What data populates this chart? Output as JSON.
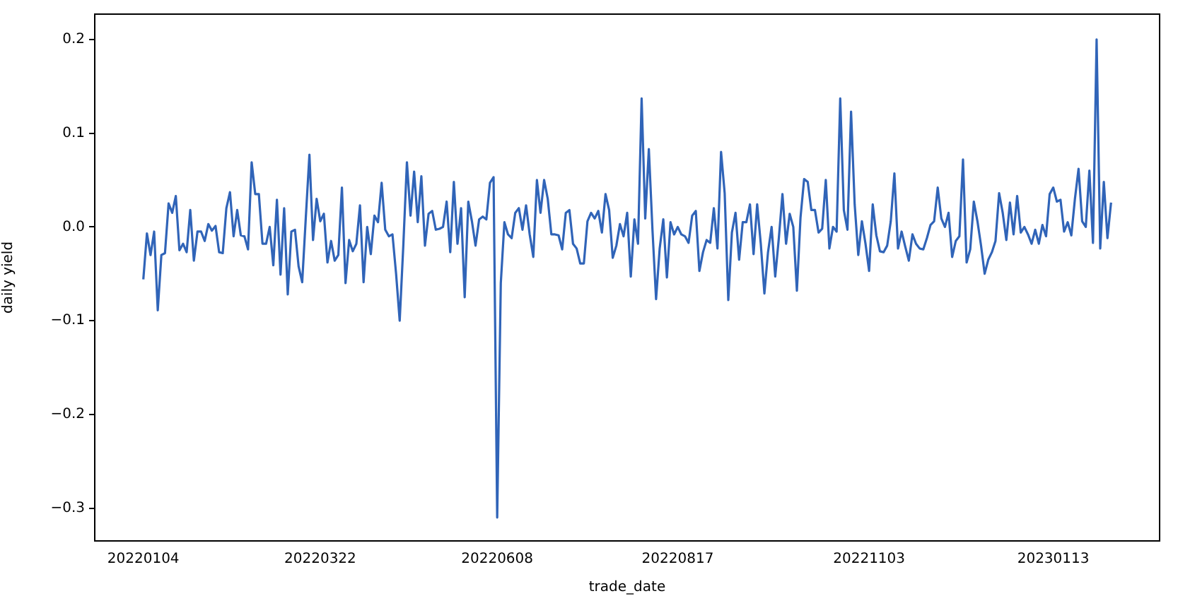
{
  "chart_data": {
    "type": "line",
    "xlabel": "trade_date",
    "ylabel": "daily yield",
    "categories": [
      "20220104",
      null,
      null,
      null,
      null,
      null,
      null,
      null,
      null,
      null,
      null,
      null,
      null,
      null,
      null,
      null,
      null,
      null,
      null,
      null,
      null,
      null,
      null,
      null,
      null,
      null,
      null,
      null,
      null,
      null,
      null,
      null,
      null,
      null,
      null,
      null,
      null,
      null,
      null,
      null,
      null,
      null,
      null,
      null,
      null,
      null,
      null,
      null,
      null,
      "20220322",
      null,
      null,
      null,
      null,
      null,
      null,
      null,
      null,
      null,
      null,
      null,
      null,
      null,
      null,
      null,
      null,
      null,
      null,
      null,
      null,
      null,
      null,
      null,
      null,
      null,
      null,
      null,
      null,
      null,
      null,
      null,
      null,
      null,
      null,
      null,
      null,
      null,
      null,
      null,
      null,
      null,
      null,
      null,
      null,
      null,
      null,
      null,
      null,
      "20220608",
      null,
      null,
      null,
      null,
      null,
      null,
      null,
      null,
      null,
      null,
      null,
      null,
      null,
      null,
      null,
      null,
      null,
      null,
      null,
      null,
      null,
      null,
      null,
      null,
      null,
      null,
      null,
      null,
      null,
      null,
      null,
      null,
      null,
      null,
      null,
      null,
      null,
      null,
      null,
      null,
      null,
      null,
      null,
      null,
      null,
      null,
      null,
      null,
      null,
      "20220817",
      null,
      null,
      null,
      null,
      null,
      null,
      null,
      null,
      null,
      null,
      null,
      null,
      null,
      null,
      null,
      null,
      null,
      null,
      null,
      null,
      null,
      null,
      null,
      null,
      null,
      null,
      null,
      null,
      null,
      null,
      null,
      null,
      null,
      null,
      null,
      null,
      null,
      null,
      null,
      null,
      null,
      null,
      null,
      null,
      null,
      null,
      null,
      null,
      null,
      null,
      null,
      null,
      "20221103",
      null,
      null,
      null,
      null,
      null,
      null,
      null,
      null,
      null,
      null,
      null,
      null,
      null,
      null,
      null,
      null,
      null,
      null,
      null,
      null,
      null,
      null,
      null,
      null,
      null,
      null,
      null,
      null,
      null,
      null,
      null,
      null,
      null,
      null,
      null,
      null,
      null,
      null,
      null,
      null,
      null,
      null,
      null,
      null,
      null,
      null,
      null,
      null,
      null,
      null,
      "20230113",
      null,
      null,
      null,
      null,
      null,
      null,
      null,
      null,
      null,
      null,
      null,
      null,
      null,
      null,
      null,
      null
    ],
    "series": [
      {
        "color": "#3064b8",
        "values": [
          -0.056,
          -0.007,
          -0.03,
          -0.005,
          -0.089,
          -0.03,
          -0.028,
          0.025,
          0.015,
          0.033,
          -0.025,
          -0.018,
          -0.027,
          0.018,
          -0.036,
          -0.005,
          -0.005,
          -0.015,
          0.003,
          -0.004,
          0.001,
          -0.027,
          -0.028,
          0.02,
          0.037,
          -0.01,
          0.018,
          -0.009,
          -0.01,
          -0.024,
          0.069,
          0.035,
          0.035,
          -0.018,
          -0.018,
          0.0,
          -0.041,
          0.029,
          -0.051,
          0.02,
          -0.072,
          -0.005,
          -0.003,
          -0.042,
          -0.059,
          0.01,
          0.077,
          -0.014,
          0.03,
          0.006,
          0.014,
          -0.038,
          -0.015,
          -0.036,
          -0.03,
          0.042,
          -0.06,
          -0.014,
          -0.026,
          -0.018,
          0.023,
          -0.059,
          0.0,
          -0.029,
          0.012,
          0.005,
          0.047,
          -0.003,
          -0.01,
          -0.008,
          -0.05,
          -0.1,
          -0.02,
          0.069,
          0.012,
          0.059,
          0.005,
          0.054,
          -0.02,
          0.014,
          0.017,
          -0.003,
          -0.002,
          0.0,
          0.027,
          -0.027,
          0.048,
          -0.018,
          0.02,
          -0.075,
          0.027,
          0.006,
          -0.02,
          0.008,
          0.011,
          0.008,
          0.047,
          0.053,
          -0.31,
          -0.06,
          0.005,
          -0.008,
          -0.012,
          0.015,
          0.02,
          -0.003,
          0.023,
          -0.008,
          -0.032,
          0.05,
          0.015,
          0.05,
          0.03,
          -0.008,
          -0.008,
          -0.009,
          -0.024,
          0.015,
          0.018,
          -0.018,
          -0.023,
          -0.039,
          -0.039,
          0.006,
          0.015,
          0.009,
          0.017,
          -0.006,
          0.035,
          0.018,
          -0.033,
          -0.02,
          0.003,
          -0.01,
          0.015,
          -0.053,
          0.008,
          -0.018,
          0.137,
          0.009,
          0.083,
          -0.003,
          -0.077,
          -0.023,
          0.008,
          -0.054,
          0.005,
          -0.008,
          0.0,
          -0.008,
          -0.01,
          -0.017,
          0.012,
          0.017,
          -0.047,
          -0.027,
          -0.014,
          -0.017,
          0.02,
          -0.023,
          0.08,
          0.036,
          -0.078,
          -0.006,
          0.015,
          -0.035,
          0.005,
          0.005,
          0.024,
          -0.029,
          0.024,
          -0.018,
          -0.071,
          -0.027,
          0.0,
          -0.053,
          -0.012,
          0.035,
          -0.018,
          0.014,
          0.0,
          -0.068,
          0.01,
          0.051,
          0.048,
          0.018,
          0.018,
          -0.006,
          -0.002,
          0.05,
          -0.023,
          0.0,
          -0.005,
          0.137,
          0.018,
          -0.003,
          0.123,
          0.024,
          -0.03,
          0.006,
          -0.018,
          -0.047,
          0.024,
          -0.009,
          -0.026,
          -0.027,
          -0.02,
          0.006,
          0.057,
          -0.023,
          -0.005,
          -0.021,
          -0.036,
          -0.008,
          -0.018,
          -0.023,
          -0.024,
          -0.012,
          0.002,
          0.006,
          0.042,
          0.009,
          0.0,
          0.015,
          -0.032,
          -0.015,
          -0.01,
          0.072,
          -0.038,
          -0.024,
          0.027,
          0.006,
          -0.02,
          -0.05,
          -0.035,
          -0.027,
          -0.015,
          0.036,
          0.015,
          -0.014,
          0.026,
          -0.008,
          0.033,
          -0.006,
          0.0,
          -0.008,
          -0.018,
          -0.003,
          -0.018,
          0.002,
          -0.01,
          0.035,
          0.042,
          0.027,
          0.029,
          -0.005,
          0.005,
          -0.009,
          0.03,
          0.062,
          0.006,
          0.0,
          0.06,
          -0.017,
          0.2,
          -0.023,
          0.048,
          -0.012,
          0.026
        ]
      }
    ],
    "ylim": [
      -0.335,
      0.227
    ],
    "yticks": [
      {
        "value": -0.3,
        "label": "−0.3"
      },
      {
        "value": -0.2,
        "label": "−0.2"
      },
      {
        "value": -0.1,
        "label": "−0.1"
      },
      {
        "value": 0,
        "label": "0.0"
      },
      0.1,
      0.2
    ],
    "grid": false,
    "legend": false
  }
}
